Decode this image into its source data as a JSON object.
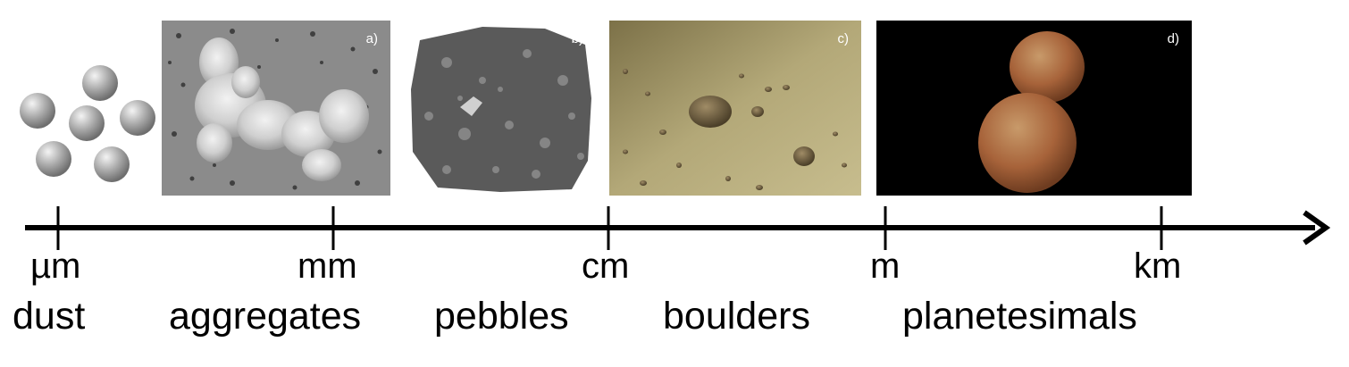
{
  "scale_ticks": [
    {
      "id": "um",
      "label": "µm"
    },
    {
      "id": "mm",
      "label": "mm"
    },
    {
      "id": "cm",
      "label": "cm"
    },
    {
      "id": "m",
      "label": "m"
    },
    {
      "id": "km",
      "label": "km"
    }
  ],
  "categories": [
    {
      "id": "dust",
      "label": "dust"
    },
    {
      "id": "aggregates",
      "label": "aggregates"
    },
    {
      "id": "pebbles",
      "label": "pebbles"
    },
    {
      "id": "boulders",
      "label": "boulders"
    },
    {
      "id": "planetesimals",
      "label": "planetesimals"
    }
  ],
  "panels": [
    {
      "id": "a",
      "label": "a)",
      "depicts": "dust aggregate micrograph"
    },
    {
      "id": "b",
      "label": "b)",
      "depicts": "chondrite meteorite cross-section"
    },
    {
      "id": "c",
      "label": "c)",
      "depicts": "boulders in a dusty disk"
    },
    {
      "id": "d",
      "label": "d)",
      "depicts": "contact-binary planetesimal"
    }
  ],
  "colors": {
    "axis": "#000000",
    "panel_a_bg": "#8a8a8a",
    "panel_b_bg": "#3a3a3a",
    "panel_c_bg": "#a59a6a",
    "panel_d_bg": "#000000",
    "planetesimal": "#b36a3e"
  }
}
